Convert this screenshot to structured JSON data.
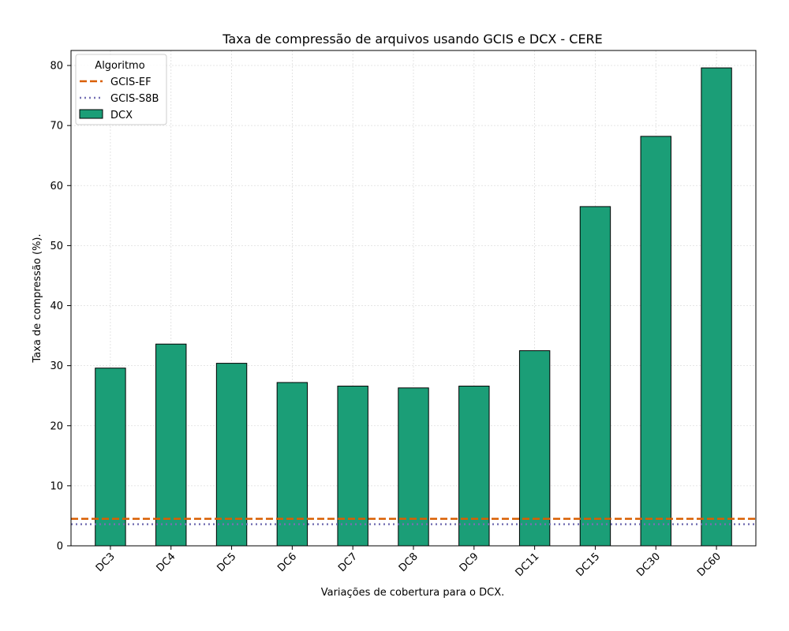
{
  "chart_data": {
    "type": "bar",
    "title": "Taxa de compressão de arquivos usando GCIS e DCX -  CERE",
    "xlabel": "Variações de cobertura para o DCX.",
    "ylabel": "Taxa de compressão (%).",
    "categories": [
      "DC3",
      "DC4",
      "DC5",
      "DC6",
      "DC7",
      "DC8",
      "DC9",
      "DC11",
      "DC15",
      "DC30",
      "DC60"
    ],
    "series": [
      {
        "name": "DCX",
        "values": [
          29.6,
          33.6,
          30.4,
          27.2,
          26.6,
          26.3,
          26.6,
          32.5,
          56.5,
          68.2,
          79.6
        ],
        "color": "#1b9e77"
      }
    ],
    "reference_lines": [
      {
        "name": "GCIS-EF",
        "value": 4.5,
        "color": "#d95f02",
        "style": "dashed"
      },
      {
        "name": "GCIS-S8B",
        "value": 3.6,
        "color": "#7570b3",
        "style": "dotted"
      }
    ],
    "ylim": [
      0,
      82.5
    ],
    "yticks": [
      0,
      10,
      20,
      30,
      40,
      50,
      60,
      70,
      80
    ],
    "grid": true,
    "legend": {
      "title": "Algoritmo",
      "placement": "top-left"
    }
  }
}
